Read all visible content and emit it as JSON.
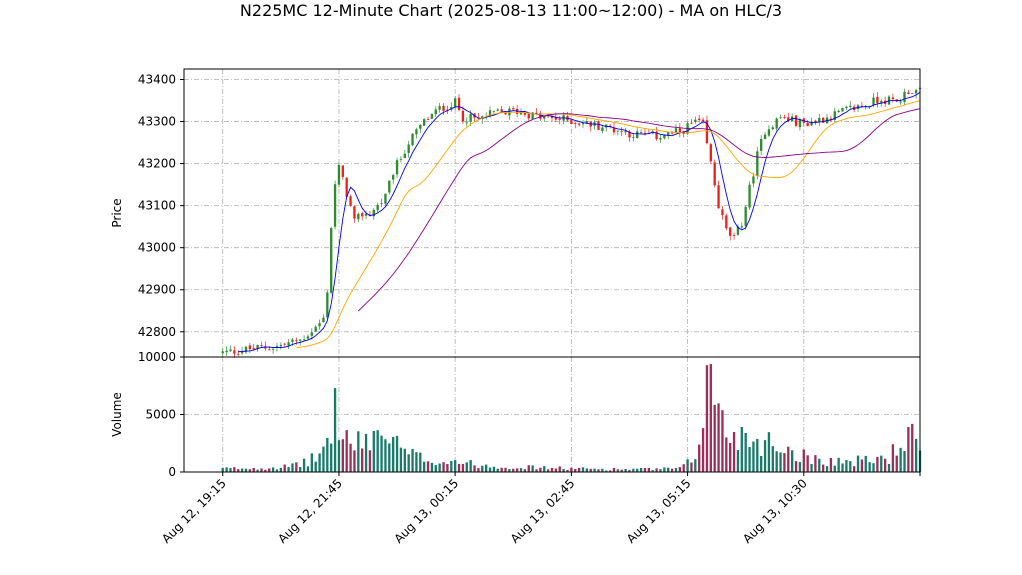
{
  "chart_data": {
    "type": "candlestick",
    "title": "N225MC 12-Minute Chart (2025-08-13 11:00~12:00) - MA on HLC/3",
    "price_panel": {
      "ylabel": "Price",
      "ylim": [
        42740,
        43425
      ],
      "yticks": [
        42800,
        42900,
        43000,
        43100,
        43200,
        43300,
        43400
      ],
      "ytick_labels": [
        "42800",
        "42900",
        "43000",
        "43100",
        "43200",
        "43300",
        "43400"
      ],
      "grid": true
    },
    "volume_panel": {
      "ylabel": "Volume",
      "ylim": [
        0,
        10000
      ],
      "yticks": [
        0,
        5000,
        10000
      ],
      "ytick_labels": [
        "0",
        "5000",
        "10000"
      ],
      "grid": true
    },
    "xlim": [
      -10,
      180
    ],
    "xticks": [
      0,
      30,
      60,
      90,
      120,
      150,
      180
    ],
    "xtick_labels": [
      "Aug 12, 19:15",
      "Aug 12, 21:45",
      "Aug 13, 00:15",
      "Aug 13, 02:45",
      "Aug 13, 05:15",
      "Aug 13, 10:30",
      ""
    ],
    "colors": {
      "up": "#2e8b2e",
      "down": "#e8231e",
      "ma_fast": "#0000ee",
      "ma_mid": "#ffa500",
      "ma_slow": "#8b008b",
      "vol_up": "#1a7a6a",
      "vol_down": "#9b2f5a"
    },
    "price_anchors": [
      [
        0,
        42750
      ],
      [
        8,
        42760
      ],
      [
        14,
        42765
      ],
      [
        18,
        42775
      ],
      [
        20,
        42780
      ],
      [
        24,
        42810
      ],
      [
        26,
        42830
      ],
      [
        27,
        42900
      ],
      [
        28,
        43050
      ],
      [
        29,
        43150
      ],
      [
        30,
        43190
      ],
      [
        32,
        43130
      ],
      [
        34,
        43060
      ],
      [
        36,
        43080
      ],
      [
        38,
        43080
      ],
      [
        40,
        43100
      ],
      [
        42,
        43120
      ],
      [
        44,
        43180
      ],
      [
        48,
        43250
      ],
      [
        52,
        43300
      ],
      [
        56,
        43330
      ],
      [
        60,
        43345
      ],
      [
        62,
        43310
      ],
      [
        66,
        43305
      ],
      [
        70,
        43320
      ],
      [
        76,
        43325
      ],
      [
        82,
        43310
      ],
      [
        88,
        43305
      ],
      [
        94,
        43295
      ],
      [
        100,
        43285
      ],
      [
        106,
        43270
      ],
      [
        112,
        43265
      ],
      [
        118,
        43275
      ],
      [
        122,
        43300
      ],
      [
        124,
        43290
      ],
      [
        126,
        43200
      ],
      [
        128,
        43100
      ],
      [
        130,
        43040
      ],
      [
        132,
        43020
      ],
      [
        134,
        43060
      ],
      [
        136,
        43140
      ],
      [
        138,
        43220
      ],
      [
        140,
        43280
      ],
      [
        144,
        43310
      ],
      [
        150,
        43295
      ],
      [
        156,
        43310
      ],
      [
        162,
        43330
      ],
      [
        166,
        43340
      ],
      [
        170,
        43355
      ],
      [
        174,
        43345
      ],
      [
        177,
        43375
      ],
      [
        180,
        43370
      ]
    ],
    "volume_anchors": [
      [
        0,
        300
      ],
      [
        10,
        350
      ],
      [
        18,
        500
      ],
      [
        24,
        1200
      ],
      [
        27,
        2500
      ],
      [
        29,
        5500
      ],
      [
        31,
        3200
      ],
      [
        34,
        2200
      ],
      [
        38,
        3000
      ],
      [
        41,
        3500
      ],
      [
        44,
        2500
      ],
      [
        48,
        1500
      ],
      [
        52,
        1200
      ],
      [
        56,
        900
      ],
      [
        60,
        1000
      ],
      [
        64,
        700
      ],
      [
        70,
        500
      ],
      [
        80,
        400
      ],
      [
        90,
        300
      ],
      [
        100,
        250
      ],
      [
        110,
        250
      ],
      [
        118,
        300
      ],
      [
        122,
        1200
      ],
      [
        124,
        6000
      ],
      [
        126,
        8500
      ],
      [
        128,
        5000
      ],
      [
        130,
        3500
      ],
      [
        134,
        3200
      ],
      [
        138,
        2800
      ],
      [
        142,
        2500
      ],
      [
        146,
        2000
      ],
      [
        150,
        1400
      ],
      [
        156,
        1000
      ],
      [
        162,
        900
      ],
      [
        168,
        1100
      ],
      [
        172,
        1300
      ],
      [
        175,
        2500
      ],
      [
        178,
        3000
      ],
      [
        180,
        1500
      ]
    ],
    "n_bars": 181,
    "ma_periods": {
      "fast": 5,
      "mid": 20,
      "slow": 36
    }
  }
}
